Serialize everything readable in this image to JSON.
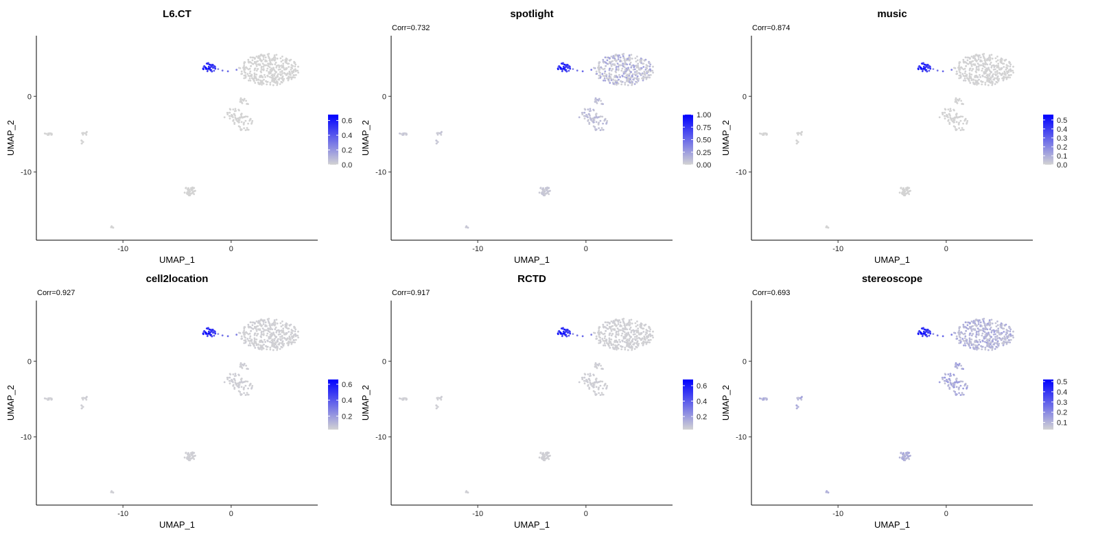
{
  "colors": {
    "low": "#d3d3d3",
    "high": "#0000ff",
    "axis": "#000000"
  },
  "chart_data": [
    {
      "type": "scatter",
      "title": "L6.CT",
      "subtitle": "",
      "xlabel": "UMAP_1",
      "ylabel": "UMAP_2",
      "xlim": [
        -18,
        8
      ],
      "ylim": [
        -19,
        8
      ],
      "xticks": [
        -10,
        0
      ],
      "yticks": [
        -10,
        0
      ],
      "grid": false,
      "legend": {
        "placement": "right",
        "ticks": [
          "0.0",
          "0.2",
          "0.4",
          "0.6"
        ],
        "min": 0,
        "max": 0.68
      },
      "scale_max": 0.68,
      "bg_intensity": 0.0,
      "top_intensity": 0.0
    },
    {
      "type": "scatter",
      "title": "spotlight",
      "subtitle": "Corr=0.732",
      "xlabel": "UMAP_1",
      "ylabel": "UMAP_2",
      "xlim": [
        -18,
        8
      ],
      "ylim": [
        -19,
        8
      ],
      "xticks": [
        -10,
        0
      ],
      "yticks": [
        -10,
        0
      ],
      "grid": false,
      "legend": {
        "placement": "right",
        "ticks": [
          "0.00",
          "0.25",
          "0.50",
          "0.75",
          "1.00"
        ],
        "min": 0,
        "max": 1.0
      },
      "scale_max": 1.0,
      "bg_intensity": 0.05,
      "top_intensity": 0.3
    },
    {
      "type": "scatter",
      "title": "music",
      "subtitle": "Corr=0.874",
      "xlabel": "UMAP_1",
      "ylabel": "UMAP_2",
      "xlim": [
        -18,
        8
      ],
      "ylim": [
        -19,
        8
      ],
      "xticks": [
        -10,
        0
      ],
      "yticks": [
        -10,
        0
      ],
      "grid": false,
      "legend": {
        "placement": "right",
        "ticks": [
          "0.0",
          "0.1",
          "0.2",
          "0.3",
          "0.4",
          "0.5"
        ],
        "min": 0,
        "max": 0.56
      },
      "scale_max": 0.56,
      "bg_intensity": 0.0,
      "top_intensity": 0.02
    },
    {
      "type": "scatter",
      "title": "cell2location",
      "subtitle": "Corr=0.927",
      "xlabel": "UMAP_1",
      "ylabel": "UMAP_2",
      "xlim": [
        -18,
        8
      ],
      "ylim": [
        -19,
        8
      ],
      "xticks": [
        -10,
        0
      ],
      "yticks": [
        -10,
        0
      ],
      "grid": false,
      "legend": {
        "placement": "right",
        "ticks": [
          "0.2",
          "0.4",
          "0.6"
        ],
        "min": 0.03,
        "max": 0.66
      },
      "scale_max": 0.66,
      "bg_intensity": 0.02,
      "top_intensity": 0.04
    },
    {
      "type": "scatter",
      "title": "RCTD",
      "subtitle": "Corr=0.917",
      "xlabel": "UMAP_1",
      "ylabel": "UMAP_2",
      "xlim": [
        -18,
        8
      ],
      "ylim": [
        -19,
        8
      ],
      "xticks": [
        -10,
        0
      ],
      "yticks": [
        -10,
        0
      ],
      "grid": false,
      "legend": {
        "placement": "right",
        "ticks": [
          "0.2",
          "0.4",
          "0.6"
        ],
        "min": 0.03,
        "max": 0.68
      },
      "scale_max": 0.68,
      "bg_intensity": 0.02,
      "top_intensity": 0.04
    },
    {
      "type": "scatter",
      "title": "stereoscope",
      "subtitle": "Corr=0.693",
      "xlabel": "UMAP_1",
      "ylabel": "UMAP_2",
      "xlim": [
        -18,
        8
      ],
      "ylim": [
        -19,
        8
      ],
      "xticks": [
        -10,
        0
      ],
      "yticks": [
        -10,
        0
      ],
      "grid": false,
      "legend": {
        "placement": "right",
        "ticks": [
          "0.1",
          "0.2",
          "0.3",
          "0.4",
          "0.5"
        ],
        "min": 0.03,
        "max": 0.52
      },
      "scale_max": 0.52,
      "bg_intensity": 0.15,
      "top_intensity": 0.3
    }
  ]
}
